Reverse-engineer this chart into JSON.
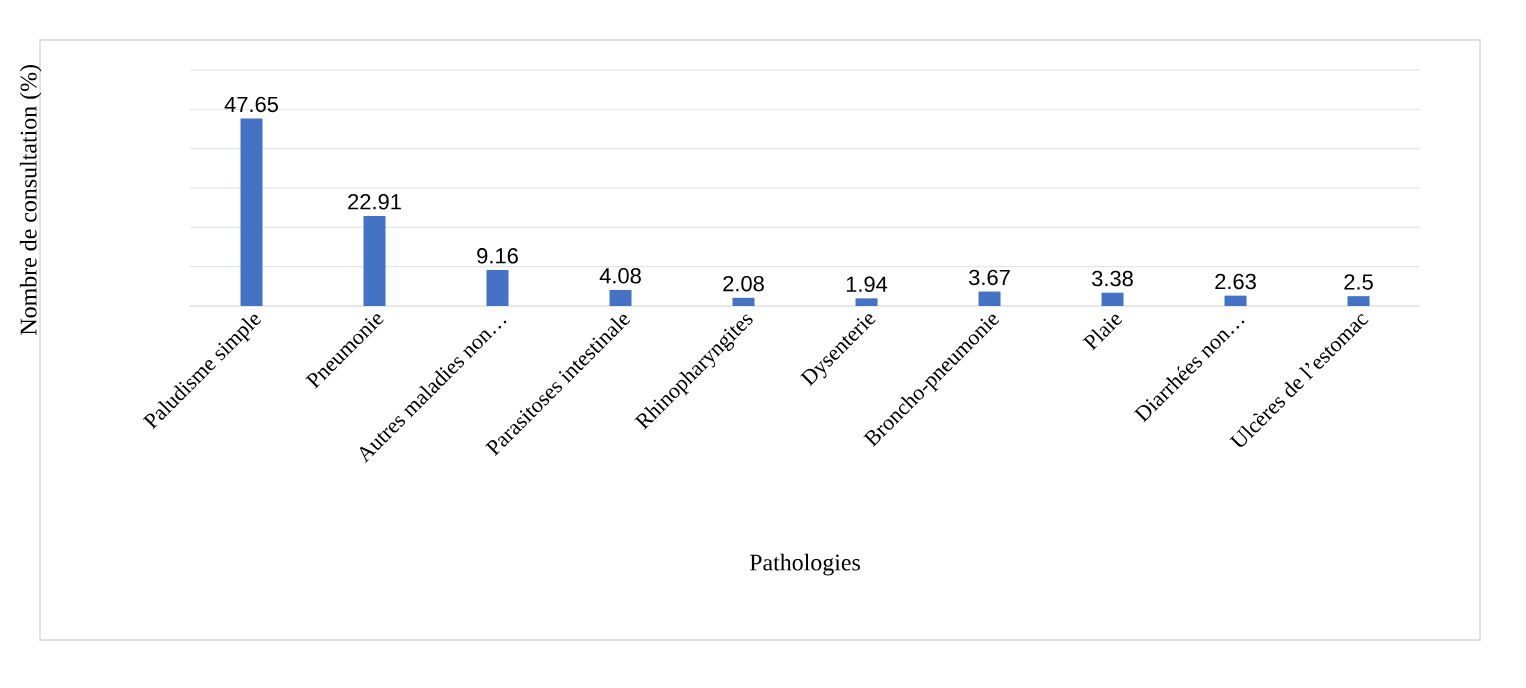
{
  "chart_data": {
    "type": "bar",
    "xlabel": "Pathologies",
    "ylabel": "Nombre de consultation (%)",
    "categories": [
      "Paludisme simple",
      "Pneumonie",
      "Autres maladies non…",
      "Parasitoses intestinale",
      "Rhinopharyngites",
      "Dysenterie",
      "Broncho-pneumonie",
      "Plaie",
      "Diarrhées non…",
      "Ulcères de l’estomac"
    ],
    "values": [
      47.65,
      22.91,
      9.16,
      4.08,
      2.08,
      1.94,
      3.67,
      3.38,
      2.63,
      2.5
    ],
    "color": "#4472c4",
    "data_labels": true,
    "grid": "y",
    "tick_labels": "x",
    "ylim": [
      0,
      60
    ],
    "yticks": [
      {
        "value": 0,
        "label": null
      },
      {
        "value": 10,
        "label": null
      },
      {
        "value": 20,
        "label": null
      },
      {
        "value": 30,
        "label": null
      },
      {
        "value": 40,
        "label": null
      },
      {
        "value": 50,
        "label": null
      },
      {
        "value": 60,
        "label": null
      }
    ]
  }
}
